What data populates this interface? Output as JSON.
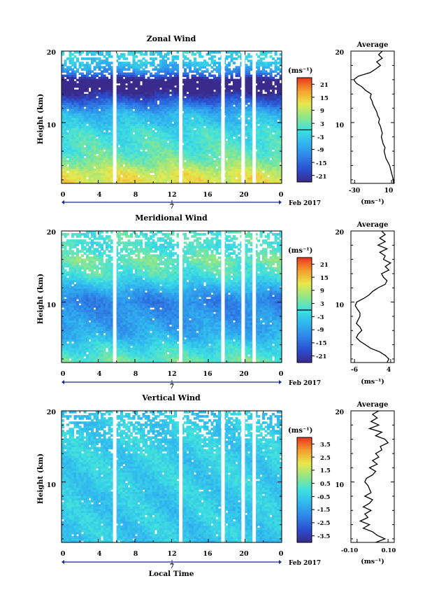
{
  "figure": {
    "xlabel_bottom": "Local Time",
    "date_label": "Feb 2017",
    "day_label": "7",
    "x_ticks": [
      "0",
      "4",
      "8",
      "12",
      "16",
      "20",
      "0"
    ],
    "unit_label": "(ms⁻¹)",
    "ylabel": "Height (km)"
  },
  "chart_data": [
    {
      "type": "heatmap",
      "title": "Zonal Wind",
      "ylabel": "Height (km)",
      "xlabel": "",
      "x_ticks": [
        "0",
        "4",
        "8",
        "12",
        "16",
        "20",
        "0"
      ],
      "y_ticks": [
        "20",
        "10"
      ],
      "xlim": [
        0,
        24
      ],
      "ylim": [
        1.5,
        20
      ],
      "colorbar": {
        "unit": "(ms⁻¹)",
        "ticks": [
          "21",
          "15",
          "9",
          "3",
          "-3",
          "-9",
          "-15",
          "-21"
        ],
        "range": [
          -24,
          24
        ],
        "zero_line": true
      },
      "profile_by_height": [
        {
          "height_km": 2,
          "value": 12
        },
        {
          "height_km": 3,
          "value": 11
        },
        {
          "height_km": 4,
          "value": 7
        },
        {
          "height_km": 5,
          "value": 4
        },
        {
          "height_km": 6,
          "value": 2
        },
        {
          "height_km": 7,
          "value": 1
        },
        {
          "height_km": 8,
          "value": 0
        },
        {
          "height_km": 9,
          "value": -1
        },
        {
          "height_km": 10,
          "value": -4
        },
        {
          "height_km": 11,
          "value": -5
        },
        {
          "height_km": 12,
          "value": -10
        },
        {
          "height_km": 13,
          "value": -16
        },
        {
          "height_km": 14,
          "value": -22
        },
        {
          "height_km": 15,
          "value": -28
        },
        {
          "height_km": 16,
          "value": -26
        },
        {
          "height_km": 17,
          "value": -12
        },
        {
          "height_km": 18,
          "value": -6
        },
        {
          "height_km": 19,
          "value": -3
        },
        {
          "height_km": 20,
          "value": -2
        }
      ],
      "gaps_hours": [
        5.8,
        13.0,
        17.6,
        19.8,
        21.0
      ],
      "average_panel": {
        "title": "Average",
        "xlabel": "(ms⁻¹)",
        "x_ticks": [
          "-30",
          "10"
        ],
        "xlim": [
          -34,
          13
        ],
        "y_ticks": [
          "20",
          "10"
        ],
        "height_km": [
          1.5,
          2,
          2.5,
          3,
          3.5,
          4,
          4.5,
          5,
          5.5,
          6,
          6.5,
          7,
          7.5,
          8,
          8.5,
          9,
          9.5,
          10,
          10.5,
          11,
          11.5,
          12,
          12.5,
          13,
          13.5,
          14,
          14.5,
          15,
          15.5,
          16,
          16.5,
          17,
          17.5,
          18,
          18.5,
          19,
          19.5,
          20
        ],
        "values": [
          12,
          12,
          11,
          10,
          9,
          8,
          6,
          4,
          3,
          2,
          3,
          1,
          0,
          -1,
          0,
          -1,
          -2,
          -4,
          -3,
          -5,
          -6,
          -8,
          -10,
          -11,
          -13,
          -12,
          -18,
          -22,
          -28,
          -31,
          -26,
          -13,
          -7,
          -2,
          -6,
          0,
          -4,
          0
        ]
      }
    },
    {
      "type": "heatmap",
      "title": "Meridional Wind",
      "ylabel": "Height (km)",
      "xlabel": "",
      "x_ticks": [
        "0",
        "4",
        "8",
        "12",
        "16",
        "20",
        "0"
      ],
      "y_ticks": [
        "20",
        "10"
      ],
      "xlim": [
        0,
        24
      ],
      "ylim": [
        1.5,
        20
      ],
      "colorbar": {
        "unit": "(ms⁻¹)",
        "ticks": [
          "21",
          "15",
          "9",
          "3",
          "-3",
          "-9",
          "-15",
          "-21"
        ],
        "range": [
          -24,
          24
        ],
        "zero_line": true
      },
      "profile_by_height": [
        {
          "height_km": 2,
          "value": 3
        },
        {
          "height_km": 3,
          "value": 0
        },
        {
          "height_km": 4,
          "value": -2
        },
        {
          "height_km": 5,
          "value": -6
        },
        {
          "height_km": 6,
          "value": -8
        },
        {
          "height_km": 7,
          "value": -9
        },
        {
          "height_km": 8,
          "value": -10
        },
        {
          "height_km": 9,
          "value": -11
        },
        {
          "height_km": 10,
          "value": -12
        },
        {
          "height_km": 11,
          "value": -10
        },
        {
          "height_km": 12,
          "value": -6
        },
        {
          "height_km": 13,
          "value": -2
        },
        {
          "height_km": 14,
          "value": 1
        },
        {
          "height_km": 15,
          "value": 2
        },
        {
          "height_km": 16,
          "value": 4
        },
        {
          "height_km": 17,
          "value": 1
        },
        {
          "height_km": 18,
          "value": 0
        },
        {
          "height_km": 19,
          "value": 2
        },
        {
          "height_km": 20,
          "value": 1
        }
      ],
      "gaps_hours": [
        5.8,
        13.0,
        17.6,
        19.8,
        21.0
      ],
      "average_panel": {
        "title": "Average",
        "xlabel": "(ms⁻¹)",
        "x_ticks": [
          "-6",
          "4"
        ],
        "xlim": [
          -7,
          5
        ],
        "y_ticks": [
          "20",
          "10"
        ],
        "height_km": [
          1.5,
          2,
          2.5,
          3,
          3.5,
          4,
          4.5,
          5,
          5.5,
          6,
          6.5,
          7,
          7.5,
          8,
          8.5,
          9,
          9.5,
          10,
          10.5,
          11,
          11.5,
          12,
          12.5,
          13,
          13.5,
          14,
          14.5,
          15,
          15.5,
          16,
          16.5,
          17,
          17.5,
          18,
          18.5,
          19,
          19.5,
          20
        ],
        "values": [
          3,
          3.5,
          2.5,
          1,
          -1.5,
          -3,
          -4.5,
          -5.5,
          -5,
          -4,
          -4.5,
          -5.5,
          -5,
          -4.5,
          -4.5,
          -5.2,
          -5.8,
          -5.4,
          -3.5,
          -2,
          -1,
          0.5,
          2.5,
          3,
          2,
          1.5,
          3.5,
          2.5,
          4,
          2,
          2.5,
          1,
          3,
          0.5,
          2.5,
          1,
          2.5,
          1.5
        ]
      }
    },
    {
      "type": "heatmap",
      "title": "Vertical Wind",
      "ylabel": "Height (km)",
      "xlabel": "Local Time",
      "x_ticks": [
        "0",
        "4",
        "8",
        "12",
        "16",
        "20",
        "0"
      ],
      "y_ticks": [
        "20",
        "10"
      ],
      "xlim": [
        0,
        24
      ],
      "ylim": [
        1.5,
        20
      ],
      "colorbar": {
        "unit": "(ms⁻¹)",
        "ticks": [
          "3.5",
          "2.5",
          "1.5",
          "0.5",
          "-0.5",
          "-1.5",
          "-2.5",
          "-3.5"
        ],
        "range": [
          -4,
          4
        ],
        "zero_line": false
      },
      "profile_by_height": [
        {
          "height_km": 2,
          "value": -0.6
        },
        {
          "height_km": 3,
          "value": -0.5
        },
        {
          "height_km": 4,
          "value": -0.6
        },
        {
          "height_km": 5,
          "value": -0.5
        },
        {
          "height_km": 6,
          "value": -0.6
        },
        {
          "height_km": 7,
          "value": -0.5
        },
        {
          "height_km": 8,
          "value": -0.6
        },
        {
          "height_km": 9,
          "value": -0.5
        },
        {
          "height_km": 10,
          "value": -0.4
        },
        {
          "height_km": 11,
          "value": -0.5
        },
        {
          "height_km": 12,
          "value": -0.4
        },
        {
          "height_km": 13,
          "value": -0.5
        },
        {
          "height_km": 14,
          "value": -0.4
        },
        {
          "height_km": 15,
          "value": -0.5
        },
        {
          "height_km": 16,
          "value": -0.4
        },
        {
          "height_km": 17,
          "value": -0.5
        },
        {
          "height_km": 18,
          "value": -0.5
        },
        {
          "height_km": 19,
          "value": -0.6
        },
        {
          "height_km": 20,
          "value": -0.6
        }
      ],
      "gaps_hours": [
        5.8,
        13.0,
        17.6,
        19.8,
        21.0
      ],
      "average_panel": {
        "title": "Average",
        "xlabel": "(ms⁻¹)",
        "x_ticks": [
          "-0.10",
          "0.10"
        ],
        "xlim": [
          -0.14,
          0.14
        ],
        "y_ticks": [
          "20",
          "10"
        ],
        "height_km": [
          1.5,
          2,
          2.5,
          3,
          3.5,
          4,
          4.5,
          5,
          5.5,
          6,
          6.5,
          7,
          7.5,
          8,
          8.5,
          9,
          9.5,
          10,
          10.5,
          11,
          11.5,
          12,
          12.5,
          13,
          13.5,
          14,
          14.5,
          15,
          15.5,
          16,
          16.5,
          17,
          17.5,
          18,
          18.5,
          19,
          19.5,
          20
        ],
        "values": [
          0.02,
          0.08,
          0.03,
          0.0,
          -0.06,
          -0.02,
          -0.08,
          -0.03,
          -0.05,
          -0.01,
          -0.06,
          -0.02,
          0.0,
          -0.05,
          -0.01,
          -0.02,
          -0.03,
          -0.05,
          -0.04,
          0.0,
          0.02,
          -0.02,
          0.03,
          0.0,
          0.04,
          0.02,
          0.06,
          0.05,
          0.1,
          0.08,
          0.02,
          0.06,
          -0.02,
          0.04,
          -0.01,
          0.03,
          0.0,
          0.04
        ]
      }
    }
  ]
}
